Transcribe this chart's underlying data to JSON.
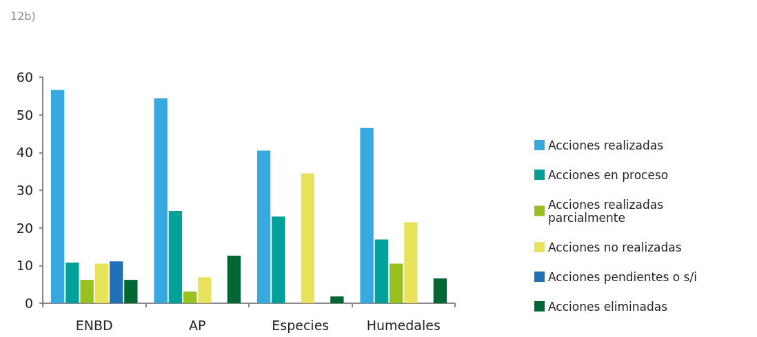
{
  "chart_data": {
    "type": "bar",
    "title": "12b)",
    "categories": [
      "ENBD",
      "AP",
      "Especies",
      "Humedales"
    ],
    "series": [
      {
        "name": "Acciones realizadas",
        "color": "#38a9e0",
        "values": [
          56.6,
          54.4,
          40.5,
          46.5
        ]
      },
      {
        "name": "Acciones en proceso",
        "color": "#00a19a",
        "values": [
          10.8,
          24.5,
          23.0,
          16.9
        ]
      },
      {
        "name": "Acciones realizadas parcialmente",
        "color": "#97c11f",
        "values": [
          6.2,
          3.1,
          null,
          10.5
        ]
      },
      {
        "name": "Acciones no realizadas",
        "color": "#e8e35a",
        "values": [
          10.5,
          6.9,
          34.5,
          21.5
        ]
      },
      {
        "name": "Acciones pendientes o s/i",
        "color": "#1f71b8",
        "values": [
          11.1,
          null,
          null,
          null
        ]
      },
      {
        "name": "Acciones eliminadas",
        "color": "#006633",
        "values": [
          6.2,
          12.6,
          1.8,
          6.6
        ]
      }
    ],
    "ylim": [
      0,
      60
    ],
    "yticks": [
      0,
      10,
      20,
      30,
      40,
      50,
      60
    ],
    "grid": false,
    "legend": "right"
  }
}
